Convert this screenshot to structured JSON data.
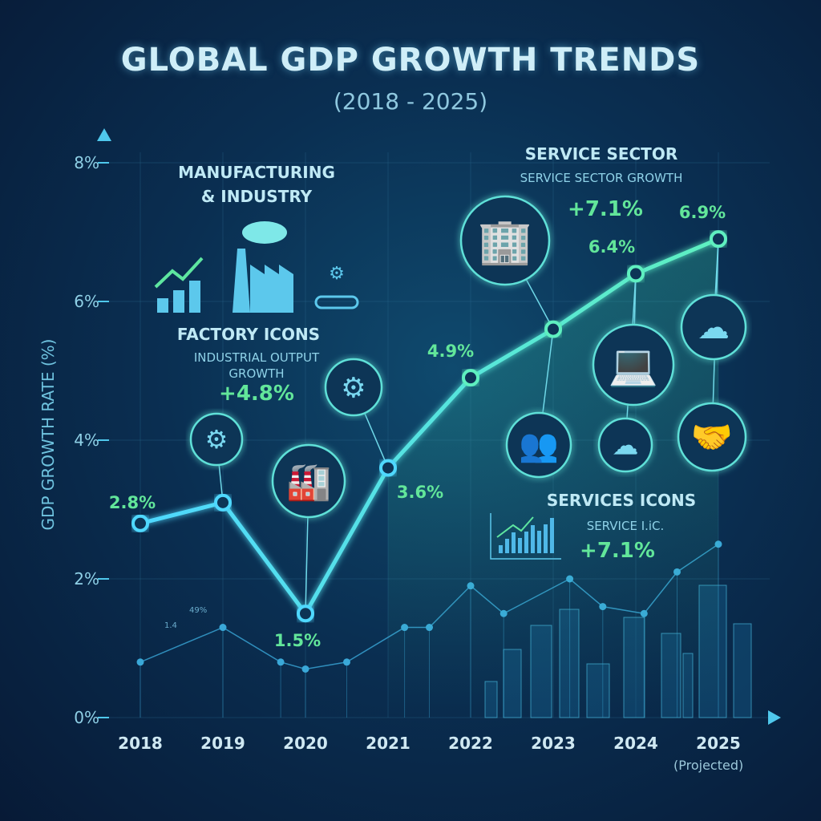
{
  "header": {
    "title": "GLOBAL GDP GROWTH TRENDS",
    "subtitle": "(2018 - 2025)"
  },
  "annotations": {
    "manufacturing": {
      "title": "MANUFACTURING\n& INDUSTRY",
      "subtitle": "FACTORY ICONS",
      "detail": "INDUSTRIAL OUTPUT\nGROWTH",
      "value": "+4.8%"
    },
    "service": {
      "title": "SERVICE SECTOR",
      "detail": "SERVICE SECTOR GROWTH",
      "value": "+7.1%"
    },
    "services_icons": {
      "title": "SERVICES ICONS",
      "detail": "SERVICE I.iC.",
      "value": "+7.1%"
    },
    "faint_labels": [
      "49%",
      "1.4"
    ]
  },
  "colors": {
    "line": "#5ef0c0",
    "line_start": "#4fd8ff",
    "label": "#62e69a",
    "axis": "#4fc8ec",
    "background": "#0a2f52"
  },
  "icons": [
    "bar-chart-up-icon",
    "factory-icon",
    "conveyor-robot-icon",
    "gears-icon",
    "factory-conveyor-icon",
    "gear-icon",
    "office-building-icon",
    "laptop-icon",
    "cloud-database-icon",
    "team-icon",
    "cloud-upload-icon",
    "handshake-icon",
    "services-bar-chart-icon"
  ],
  "chart_data": {
    "type": "line",
    "title": "GLOBAL GDP GROWTH TRENDS",
    "subtitle": "(2018 - 2025)",
    "xlabel": "",
    "ylabel": "GDP GROWTH RATE (%)",
    "categories": [
      "2018",
      "2019",
      "2020",
      "2021",
      "2022",
      "2023",
      "2024",
      "2025"
    ],
    "x_note": "(Projected)",
    "series": [
      {
        "values": [
          2.8,
          3.1,
          1.5,
          3.6,
          4.9,
          5.6,
          6.4,
          6.9
        ],
        "labels": [
          "2.8%",
          "",
          "1.5%",
          "3.6%",
          "4.9%",
          "",
          "6.4%",
          "6.9%"
        ]
      }
    ],
    "background_series": {
      "x": [
        2018,
        2019,
        2019.7,
        2020,
        2020.5,
        2021.2,
        2021.5,
        2022,
        2022.4,
        2023.2,
        2023.6,
        2024.1,
        2024.5,
        2025
      ],
      "values": [
        0.8,
        1.3,
        0.8,
        0.7,
        0.8,
        1.3,
        1.3,
        1.9,
        1.5,
        2.0,
        1.6,
        1.5,
        2.1,
        2.5
      ]
    },
    "yticks": [
      "0%",
      "2%",
      "4%",
      "6%",
      "8%"
    ],
    "ylim": [
      0,
      8
    ],
    "grid": true,
    "legend": "none"
  }
}
